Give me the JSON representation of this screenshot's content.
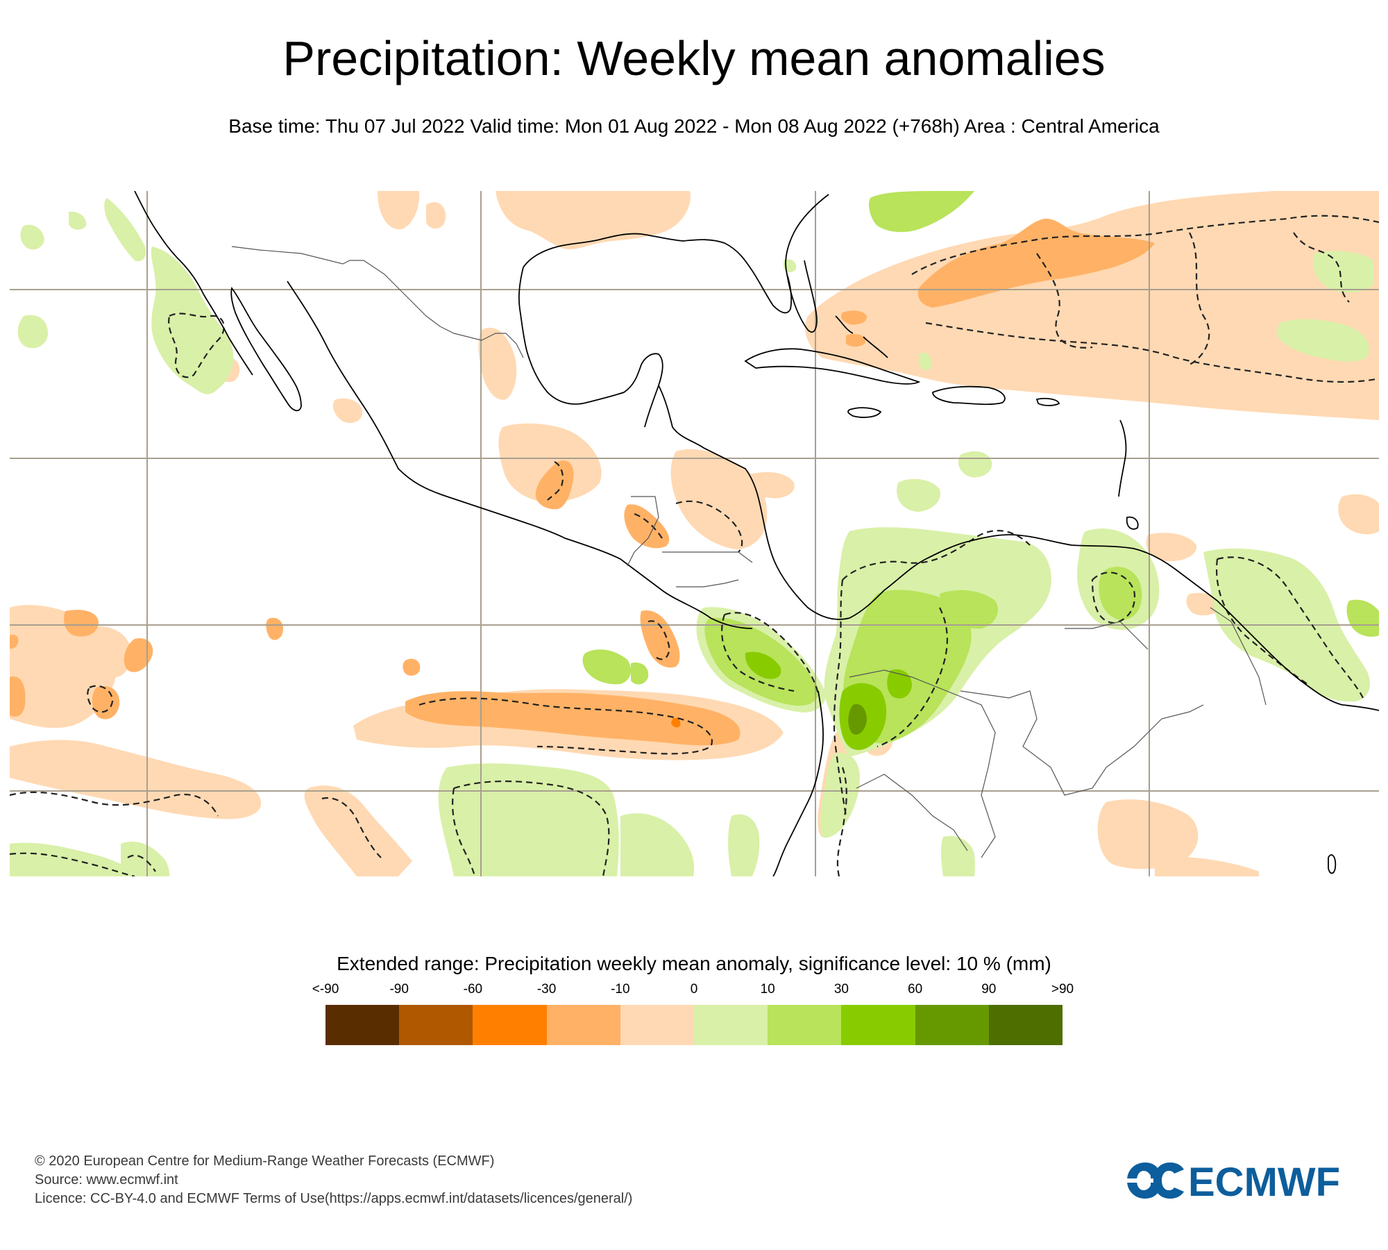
{
  "header": {
    "title": "Precipitation: Weekly mean anomalies",
    "subtitle": "Base time: Thu 07 Jul 2022 Valid time: Mon 01 Aug 2022 - Mon 08 Aug 2022 (+768h) Area : Central America"
  },
  "map": {
    "area": "Central America",
    "parameter": "Precipitation weekly mean anomaly",
    "significance_contours": "dashed",
    "colors": {
      "grid_line": "#a89f8f",
      "coastline": "#000000",
      "border": "#555555"
    }
  },
  "legend": {
    "title": "Extended range: Precipitation weekly mean anomaly, significance level: 10 % (mm)",
    "ticks": [
      "<-90",
      "-90",
      "-60",
      "-30",
      "-10",
      "0",
      "10",
      "30",
      "60",
      "90",
      ">90"
    ],
    "colors": [
      "#5a2d00",
      "#b05800",
      "#ff8000",
      "#ffb266",
      "#ffd9b3",
      "#d9f0a8",
      "#b8e35a",
      "#88cc00",
      "#669900",
      "#4f6e00"
    ]
  },
  "footer": {
    "line1": "© 2020 European Centre for Medium-Range Weather Forecasts (ECMWF)",
    "line2": "Source: www.ecmwf.int",
    "line3": "Licence: CC-BY-4.0 and ECMWF Terms of Use(https://apps.ecmwf.int/datasets/licences/general/)"
  },
  "logo": {
    "text": "ECMWF",
    "color": "#0d5e9c"
  }
}
